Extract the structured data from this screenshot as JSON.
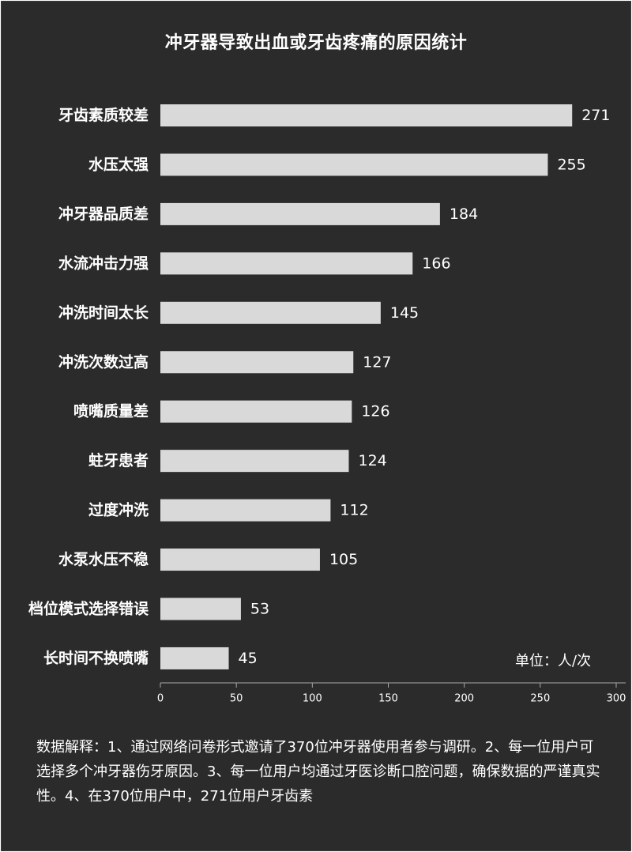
{
  "title": "冲牙器导致出血或牙齿疼痛的原因统计",
  "unit_label": "单位：人/次",
  "footnote": "数据解释：1、通过网络问卷形式邀请了370位冲牙器使用者参与调研。2、每一位用户可选择多个冲牙器伤牙原因。3、每一位用户均通过牙医诊断口腔问题，确保数据的严谨真实性。4、在370位用户中，271位用户牙齿素",
  "colors": {
    "background": "#2b2b2b",
    "bar": "#d9d9d9",
    "text": "#ffffff",
    "axis": "#aaaaaa"
  },
  "chart_data": {
    "type": "bar",
    "orientation": "horizontal",
    "title": "冲牙器导致出血或牙齿疼痛的原因统计",
    "categories": [
      "牙齿素质较差",
      "水压太强",
      "冲牙器品质差",
      "水流冲击力强",
      "冲洗时间太长",
      "冲洗次数过高",
      "喷嘴质量差",
      "蛀牙患者",
      "过度冲洗",
      "水泵水压不稳",
      "档位模式选择错误",
      "长时间不换喷嘴"
    ],
    "values": [
      271,
      255,
      184,
      166,
      145,
      127,
      126,
      124,
      112,
      105,
      53,
      45
    ],
    "value_labels": [
      "271",
      "255",
      "184",
      "166",
      "145",
      "127",
      "126",
      "124",
      "112",
      "105",
      "53",
      "45"
    ],
    "xlim": [
      0,
      300
    ],
    "xticks": [
      0,
      50,
      100,
      150,
      200,
      250,
      300
    ],
    "xtick_labels": [
      "0",
      "50",
      "100",
      "150",
      "200",
      "250",
      "300"
    ],
    "grid": false,
    "legend": "none"
  }
}
